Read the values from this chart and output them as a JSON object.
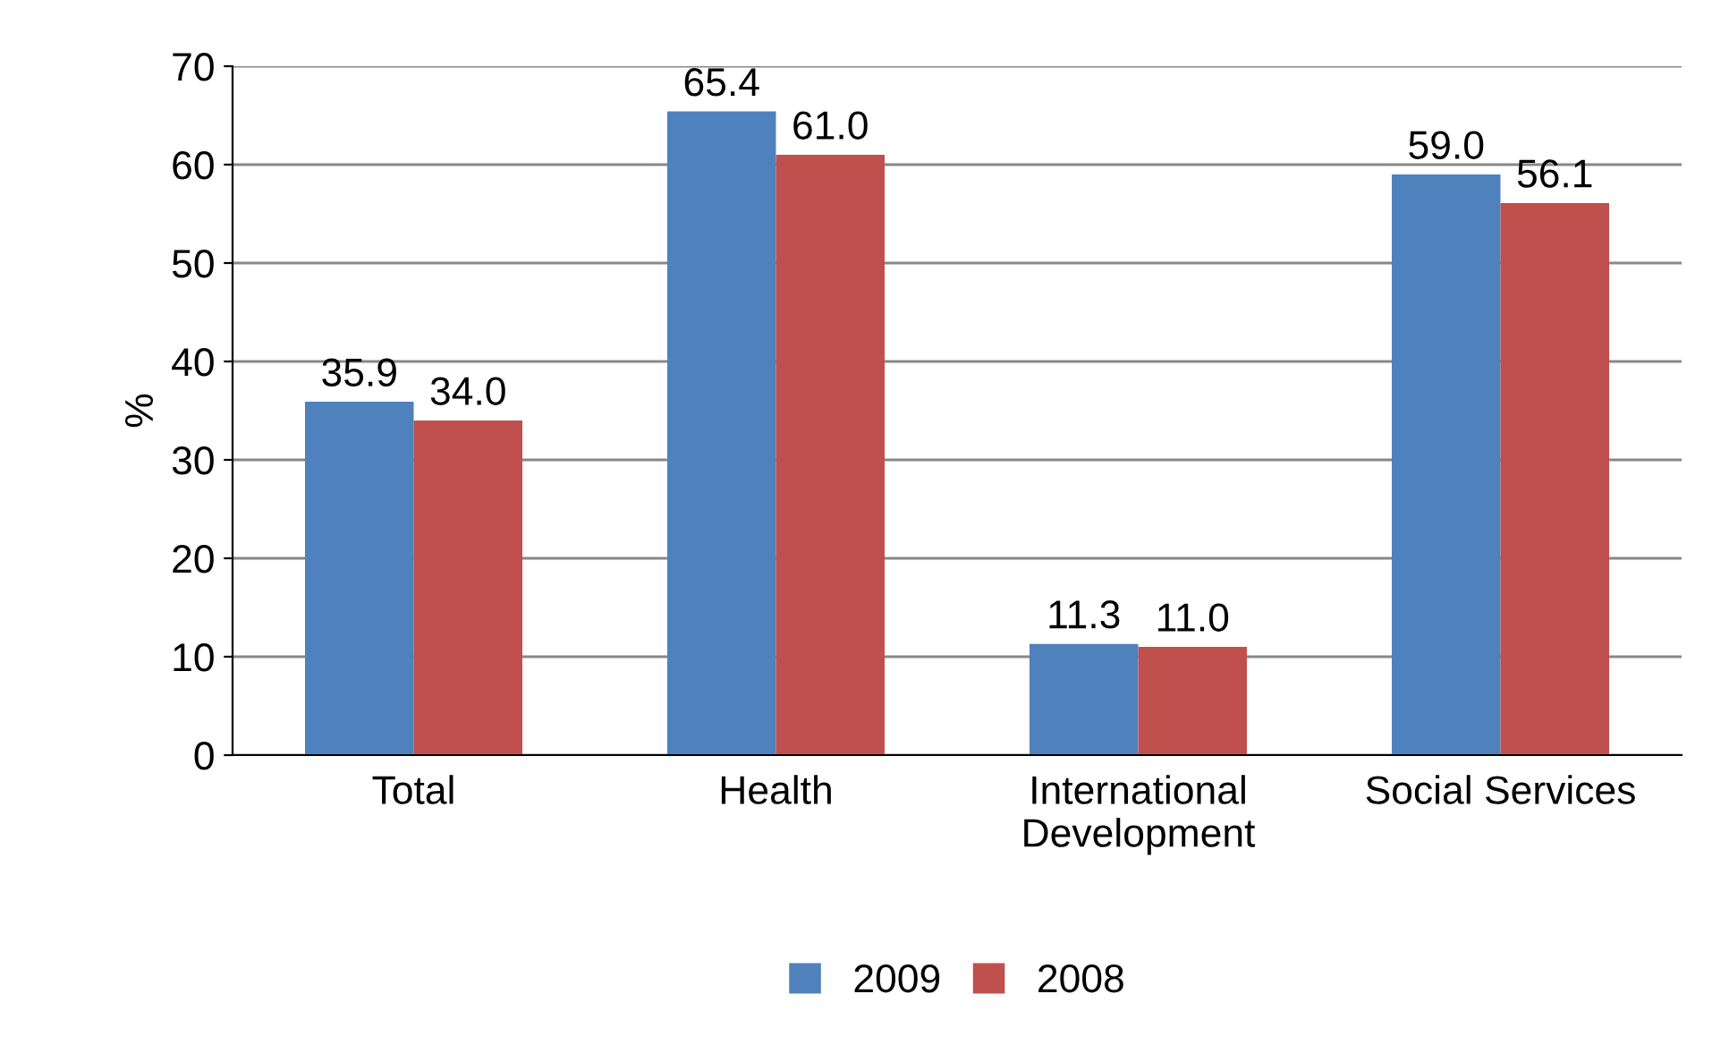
{
  "chart_data": {
    "type": "bar",
    "ylabel": "%",
    "categories": [
      "Total",
      "Health",
      "International\nDevelopment",
      "Social Services"
    ],
    "series": [
      {
        "name": "2009",
        "color": "#4f81bd",
        "values": [
          35.9,
          65.4,
          11.3,
          59.0
        ],
        "value_labels": [
          "35.9",
          "65.4",
          "11.3",
          "59.0"
        ]
      },
      {
        "name": "2008",
        "color": "#c0504d",
        "values": [
          34.0,
          61.0,
          11.0,
          56.1
        ],
        "value_labels": [
          "34.0",
          "61.0",
          "11.0",
          "56.1"
        ]
      }
    ],
    "ylim": [
      0,
      70
    ],
    "yticks": [
      0,
      10,
      20,
      30,
      40,
      50,
      60,
      70
    ],
    "grid": "y",
    "legend": "bottom"
  }
}
